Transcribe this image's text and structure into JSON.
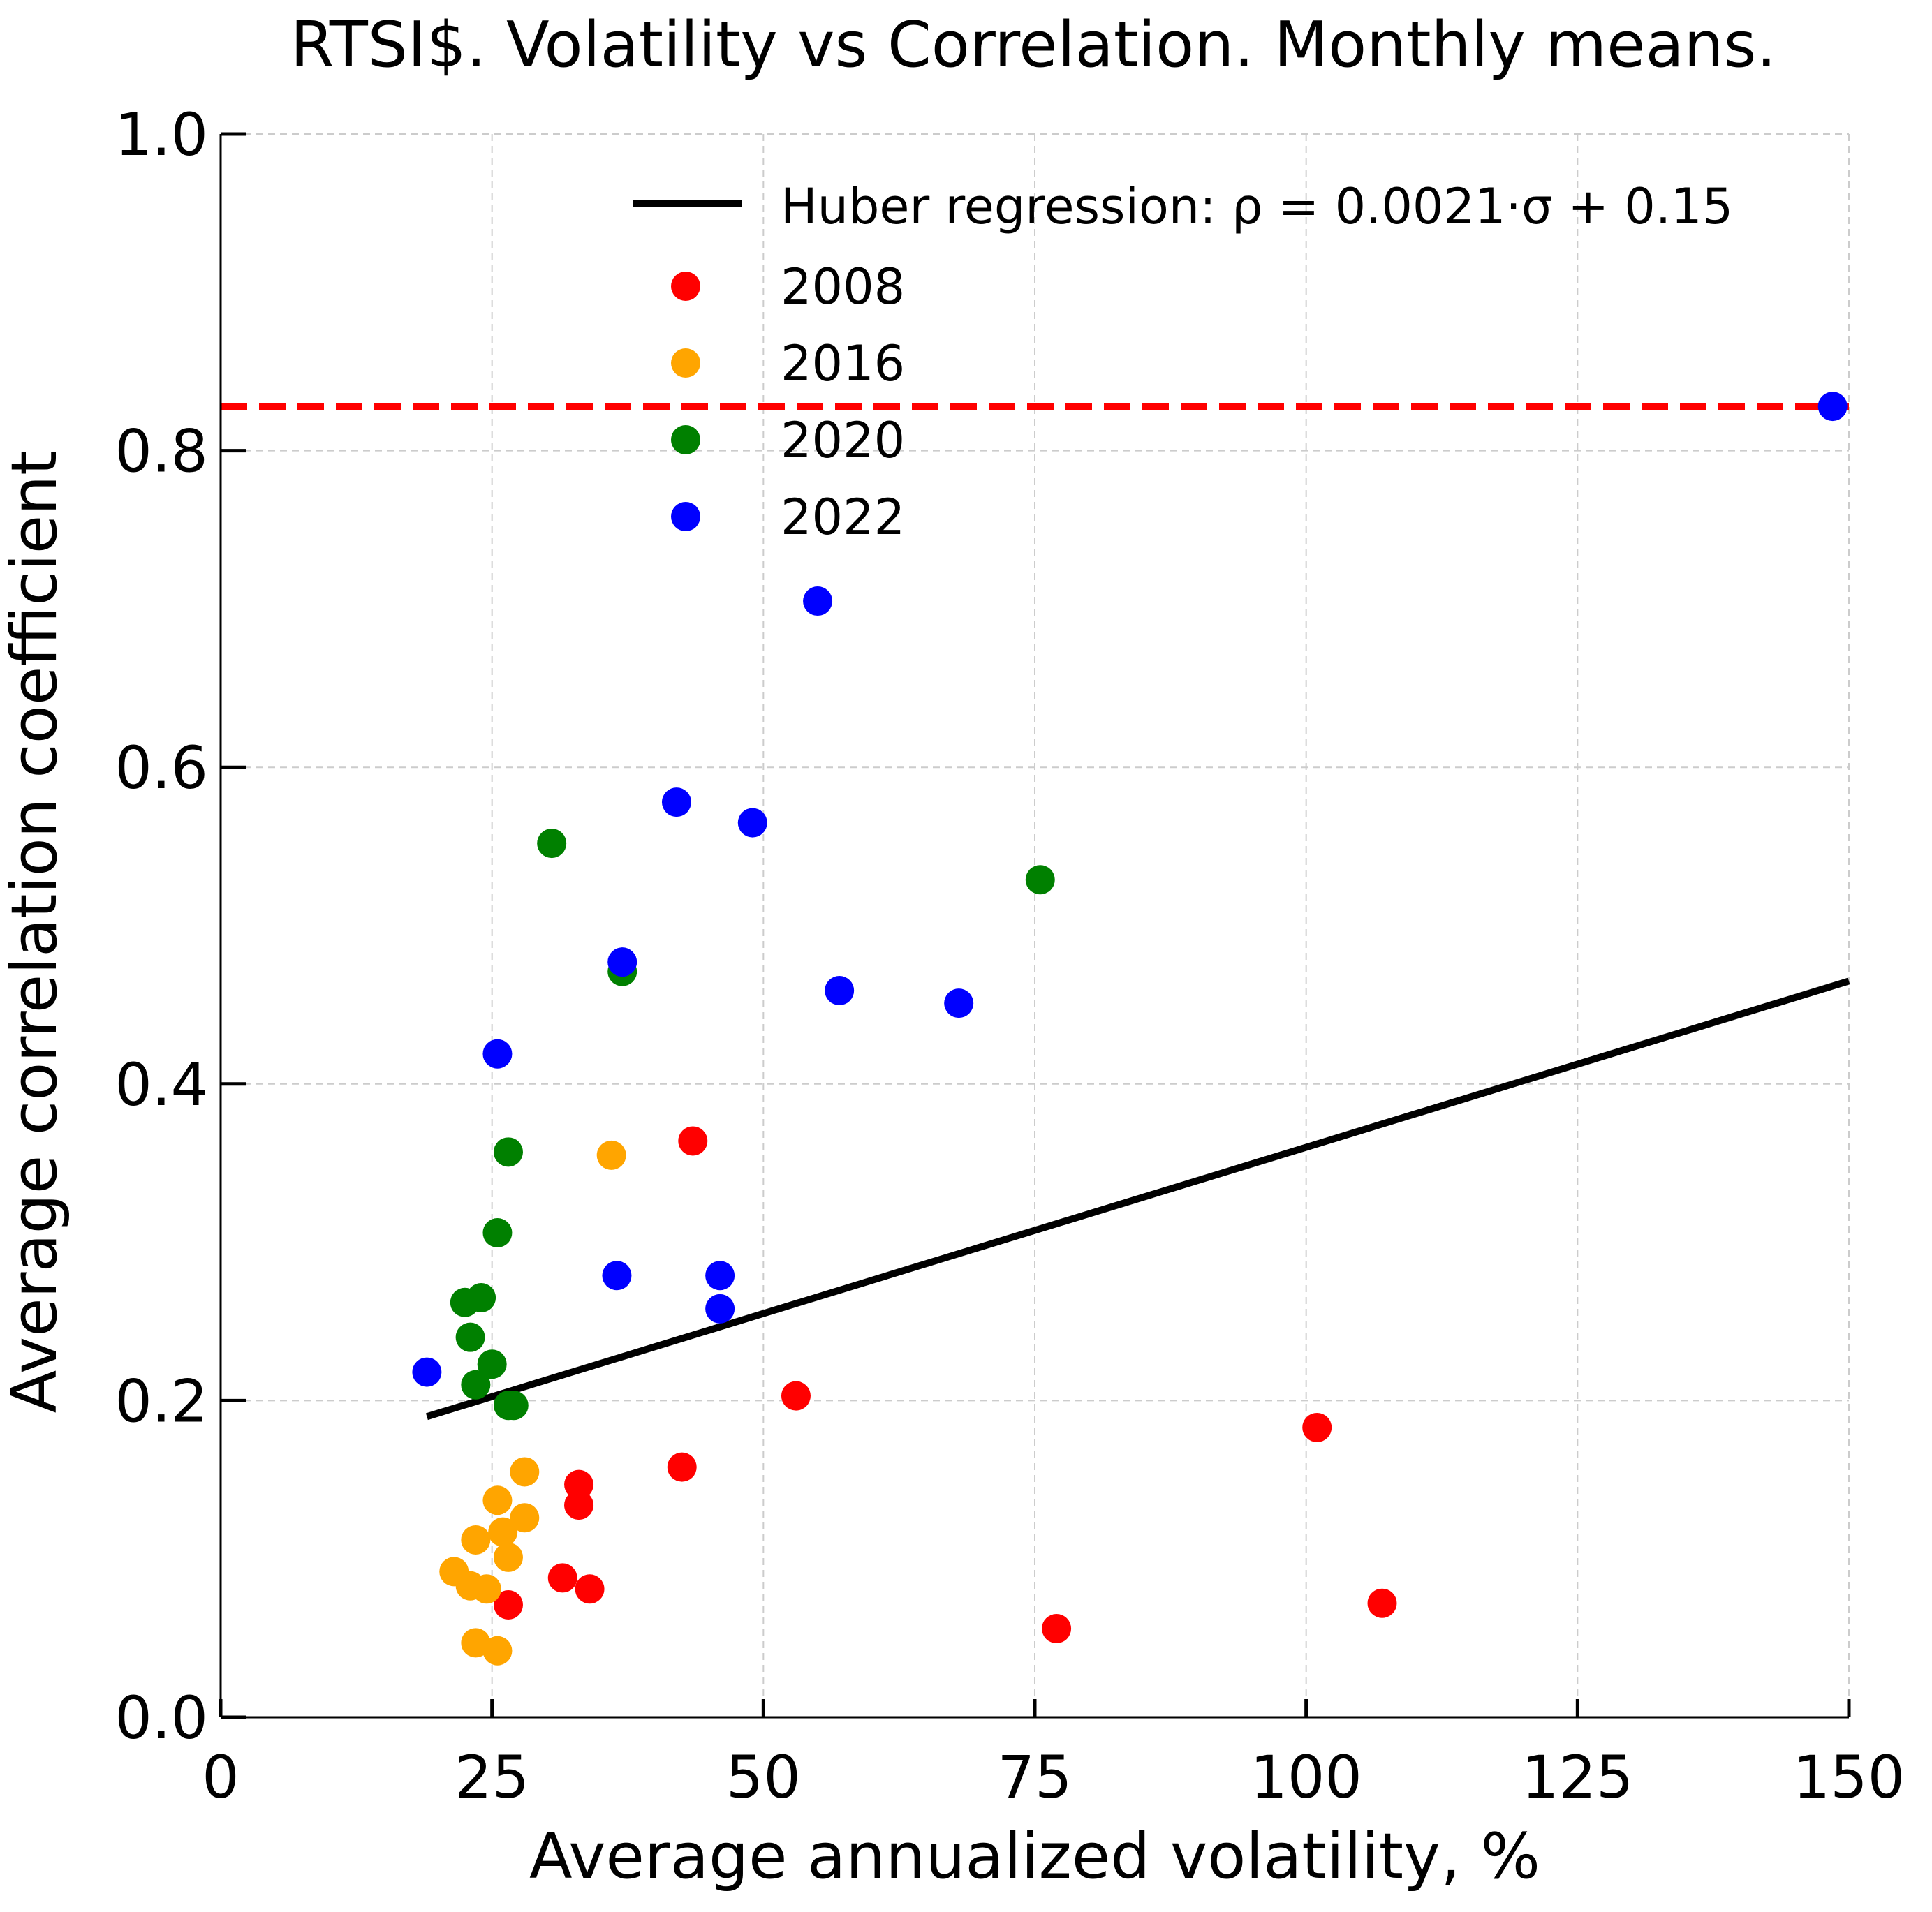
{
  "chart_data": {
    "type": "scatter",
    "title": "RTSI$. Volatility vs Correlation. Monthly means.",
    "xlabel": "Average annualized volatility, %",
    "ylabel": "Average correlation coefficient",
    "xlim": [
      0,
      150
    ],
    "ylim": [
      0,
      1
    ],
    "xticks": [
      "0",
      "25",
      "50",
      "75",
      "100",
      "125",
      "150"
    ],
    "yticks": [
      "0.0",
      "0.2",
      "0.4",
      "0.6",
      "0.8",
      "1.0"
    ],
    "grid": true,
    "legend_position": "top-right",
    "reference_line": {
      "y": 0.828,
      "color": "#ff0000",
      "style": "dashed"
    },
    "regression": {
      "label": "Huber regression: ρ = 0.0021·σ + 0.15",
      "slope": 0.0021,
      "intercept": 0.15,
      "x_range": [
        19,
        150
      ],
      "color": "#000000"
    },
    "series": [
      {
        "name": "2008",
        "color": "#ff0000",
        "points": [
          [
            26.5,
            0.071
          ],
          [
            31.5,
            0.088
          ],
          [
            33,
            0.147
          ],
          [
            33,
            0.134
          ],
          [
            34,
            0.081
          ],
          [
            42.5,
            0.158
          ],
          [
            43.5,
            0.364
          ],
          [
            53,
            0.203
          ],
          [
            77,
            0.056
          ],
          [
            101,
            0.183
          ],
          [
            107,
            0.072
          ]
        ]
      },
      {
        "name": "2016",
        "color": "#ffa500",
        "points": [
          [
            21.5,
            0.092
          ],
          [
            23,
            0.083
          ],
          [
            24.5,
            0.081
          ],
          [
            23.5,
            0.112
          ],
          [
            25.5,
            0.137
          ],
          [
            26,
            0.117
          ],
          [
            26.5,
            0.101
          ],
          [
            28,
            0.155
          ],
          [
            28,
            0.126
          ],
          [
            23.5,
            0.047
          ],
          [
            25.5,
            0.042
          ],
          [
            36,
            0.355
          ]
        ]
      },
      {
        "name": "2020",
        "color": "#008000",
        "points": [
          [
            30.5,
            0.552
          ],
          [
            26.5,
            0.357
          ],
          [
            25.5,
            0.306
          ],
          [
            22.5,
            0.262
          ],
          [
            24,
            0.265
          ],
          [
            23,
            0.24
          ],
          [
            25,
            0.223
          ],
          [
            23.5,
            0.21
          ],
          [
            26.5,
            0.197
          ],
          [
            27,
            0.197
          ],
          [
            37,
            0.471
          ],
          [
            75.5,
            0.529
          ]
        ]
      },
      {
        "name": "2022",
        "color": "#0000ff",
        "points": [
          [
            19,
            0.218
          ],
          [
            25.5,
            0.419
          ],
          [
            37,
            0.477
          ],
          [
            36.5,
            0.279
          ],
          [
            42,
            0.578
          ],
          [
            49,
            0.565
          ],
          [
            55,
            0.705
          ],
          [
            57,
            0.459
          ],
          [
            68,
            0.451
          ],
          [
            46,
            0.279
          ],
          [
            46,
            0.258
          ],
          [
            148.5,
            0.828
          ]
        ]
      }
    ]
  }
}
